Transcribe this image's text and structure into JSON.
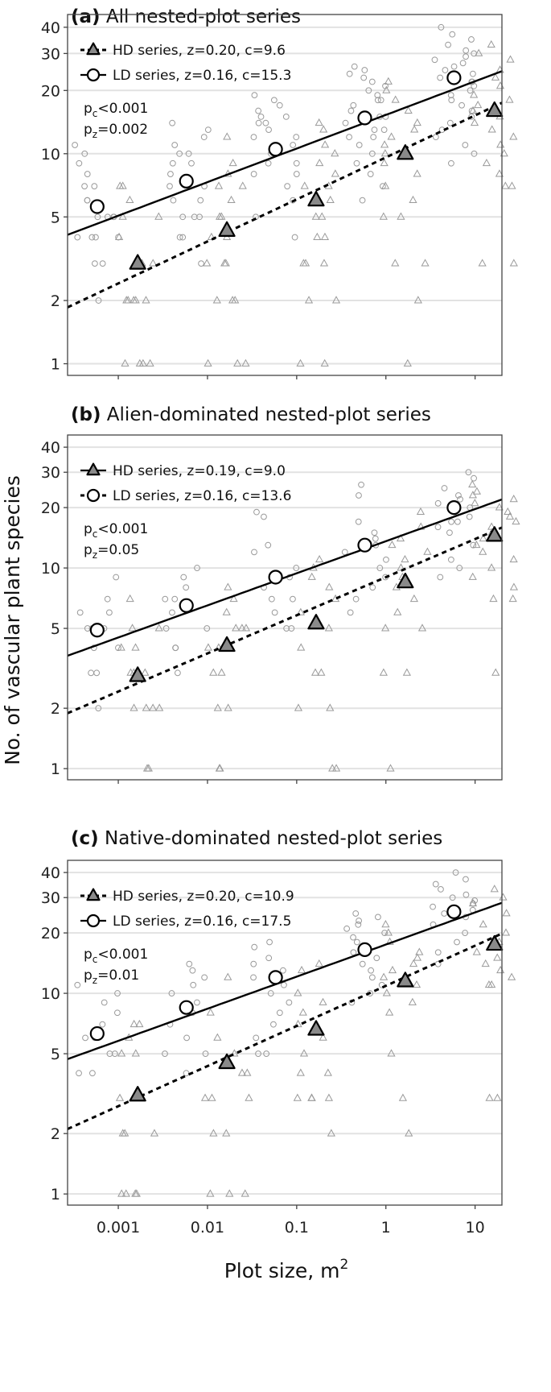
{
  "chart_data": {
    "type": "scatter",
    "scale": "log-log",
    "ylabel": "No. of vascular plant species",
    "xlabel": "Plot size, m",
    "xlabel_sup": "2",
    "x_ticks": [
      0.001,
      0.01,
      0.1,
      1,
      10
    ],
    "x_tick_labels": [
      "0.001",
      "0.01",
      "0.1",
      "1",
      "10"
    ],
    "y_ticks": [
      1,
      2,
      5,
      10,
      20,
      30,
      40
    ],
    "y_tick_labels": [
      "1",
      "2",
      "5",
      "10",
      "20",
      "30",
      "40"
    ],
    "xlim": [
      0.00027,
      20
    ],
    "ylim": [
      0.88,
      46
    ],
    "nominal_plot_sizes": [
      0.001,
      0.01,
      0.1,
      1,
      10
    ],
    "panels": [
      {
        "label": "(a)",
        "title": "All nested-plot series",
        "legend": [
          {
            "series": "HD",
            "text": "HD series, z=0.20, c=9.6",
            "marker": "triangle",
            "line": "dashed"
          },
          {
            "series": "LD",
            "text": "LD  series, z=0.16, c=15.3",
            "marker": "circle",
            "line": "solid"
          }
        ],
        "pc_text": "<0.001",
        "pz_text": "=0.002",
        "fit_LD": {
          "z": 0.16,
          "c": 15.3
        },
        "fit_HD": {
          "z": 0.2,
          "c": 9.6
        },
        "mean_LD": [
          5.6,
          7.4,
          10.5,
          14.8,
          23
        ],
        "mean_HD": [
          3.0,
          4.3,
          6.0,
          10.0,
          16
        ],
        "raw_LD": [
          [
            11,
            10,
            9,
            8,
            7,
            7,
            6,
            6,
            5,
            5,
            5,
            5,
            4,
            4,
            4,
            4,
            3,
            3,
            2
          ],
          [
            14,
            13,
            12,
            11,
            10,
            10,
            9,
            9,
            8,
            7,
            7,
            6,
            6,
            5,
            5,
            5,
            4,
            4,
            3
          ],
          [
            19,
            18,
            17,
            16,
            15,
            15,
            14,
            14,
            13,
            12,
            12,
            11,
            10,
            10,
            9,
            9,
            8,
            8,
            7,
            6,
            5,
            4
          ],
          [
            26,
            25,
            24,
            23,
            22,
            21,
            20,
            19,
            18,
            18,
            17,
            16,
            15,
            15,
            14,
            13,
            13,
            12,
            12,
            11,
            10,
            9,
            8,
            7,
            6
          ],
          [
            40,
            37,
            35,
            33,
            31,
            30,
            29,
            28,
            27,
            26,
            25,
            24,
            23,
            22,
            22,
            21,
            20,
            19,
            18,
            17,
            16,
            15,
            14,
            13,
            12,
            11,
            10,
            9
          ]
        ],
        "raw_HD": [
          [
            7,
            7,
            6,
            5,
            5,
            4,
            3,
            3,
            2,
            2,
            2,
            2,
            2,
            1,
            1,
            1,
            1
          ],
          [
            12,
            9,
            8,
            7,
            7,
            6,
            5,
            5,
            4,
            4,
            3,
            3,
            3,
            2,
            2,
            2,
            1,
            1,
            1
          ],
          [
            14,
            13,
            11,
            10,
            9,
            8,
            7,
            7,
            6,
            5,
            5,
            4,
            4,
            3,
            3,
            3,
            2,
            2,
            1,
            1
          ],
          [
            22,
            20,
            18,
            16,
            14,
            13,
            12,
            11,
            10,
            9,
            8,
            7,
            6,
            5,
            5,
            3,
            3,
            2,
            1
          ],
          [
            33,
            30,
            28,
            25,
            23,
            21,
            19,
            18,
            17,
            16,
            15,
            14,
            13,
            12,
            11,
            10,
            9,
            8,
            7,
            7,
            3,
            3
          ]
        ]
      },
      {
        "label": "(b)",
        "title": "Alien-dominated nested-plot series",
        "legend": [
          {
            "series": "HD",
            "text": "HD series, z=0.19, c=9.0",
            "marker": "triangle",
            "line": "solid"
          },
          {
            "series": "LD",
            "text": "LD  series, z=0.16, c=13.6",
            "marker": "circle",
            "line": "dashed"
          }
        ],
        "pc_text": "<0.001",
        "pz_text": "=0.05",
        "fit_LD": {
          "z": 0.16,
          "c": 13.6
        },
        "fit_HD": {
          "z": 0.19,
          "c": 9.0
        },
        "mean_LD": [
          4.9,
          6.5,
          9.0,
          13.0,
          20
        ],
        "mean_HD": [
          2.9,
          4.1,
          5.3,
          8.5,
          14.5
        ],
        "raw_LD": [
          [
            9,
            7,
            6,
            6,
            5,
            5,
            5,
            4,
            4,
            3,
            3,
            2
          ],
          [
            10,
            9,
            8,
            7,
            7,
            6,
            5,
            5,
            4,
            4,
            3
          ],
          [
            19,
            18,
            13,
            12,
            10,
            9,
            8,
            7,
            7,
            6,
            5,
            5
          ],
          [
            26,
            23,
            17,
            15,
            14,
            13,
            12,
            11,
            10,
            9,
            8,
            7,
            6
          ],
          [
            30,
            28,
            25,
            23,
            22,
            21,
            20,
            19,
            18,
            17,
            17,
            16,
            15,
            13,
            11,
            10,
            9
          ]
        ],
        "raw_HD": [
          [
            7,
            5,
            5,
            4,
            4,
            3,
            3,
            3,
            2,
            2,
            2,
            2,
            1,
            1
          ],
          [
            8,
            7,
            6,
            5,
            5,
            5,
            4,
            4,
            3,
            3,
            2,
            2,
            1,
            1
          ],
          [
            11,
            10,
            9,
            8,
            7,
            6,
            5,
            4,
            3,
            3,
            2,
            2,
            1,
            1
          ],
          [
            19,
            16,
            14,
            13,
            12,
            11,
            10,
            9,
            8,
            7,
            6,
            5,
            5,
            3,
            3,
            1
          ],
          [
            26,
            24,
            23,
            22,
            21,
            20,
            19,
            18,
            17,
            16,
            15,
            14,
            13,
            12,
            11,
            10,
            9,
            8,
            7,
            7,
            3
          ]
        ]
      },
      {
        "label": "(c)",
        "title": "Native-dominated nested-plot series",
        "legend": [
          {
            "series": "HD",
            "text": "HD series, z=0.20, c=10.9",
            "marker": "triangle",
            "line": "dashed"
          },
          {
            "series": "LD",
            "text": "LD  series, z=0.16, c=17.5",
            "marker": "circle",
            "line": "solid"
          }
        ],
        "pc_text": "<0.001",
        "pz_text": "=0.01",
        "fit_LD": {
          "z": 0.16,
          "c": 17.5
        },
        "fit_HD": {
          "z": 0.2,
          "c": 10.9
        },
        "mean_LD": [
          6.3,
          8.5,
          12.0,
          16.5,
          25.5
        ],
        "mean_HD": [
          3.1,
          4.5,
          6.6,
          11.5,
          17.5
        ],
        "raw_LD": [
          [
            11,
            10,
            9,
            8,
            7,
            6,
            6,
            5,
            5,
            4,
            4
          ],
          [
            14,
            13,
            12,
            11,
            10,
            9,
            8,
            7,
            6,
            5,
            5,
            4
          ],
          [
            18,
            17,
            15,
            14,
            13,
            12,
            11,
            10,
            9,
            8,
            7,
            6,
            5,
            5
          ],
          [
            25,
            24,
            23,
            22,
            21,
            20,
            19,
            18,
            17,
            16,
            15,
            14,
            13,
            12,
            11,
            10,
            9
          ],
          [
            40,
            37,
            35,
            33,
            31,
            30,
            29,
            28,
            27,
            26,
            25,
            24,
            22,
            20,
            18,
            16,
            14
          ]
        ],
        "raw_HD": [
          [
            7,
            7,
            6,
            5,
            5,
            3,
            3,
            2,
            2,
            2,
            1,
            1,
            1,
            1
          ],
          [
            12,
            8,
            6,
            5,
            4,
            4,
            3,
            3,
            3,
            2,
            2,
            1,
            1,
            1
          ],
          [
            14,
            13,
            10,
            9,
            8,
            7,
            6,
            5,
            4,
            4,
            3,
            3,
            3,
            3,
            2
          ],
          [
            22,
            20,
            18,
            16,
            15,
            14,
            13,
            12,
            11,
            10,
            9,
            8,
            5,
            3,
            2
          ],
          [
            33,
            30,
            28,
            25,
            22,
            20,
            18,
            16,
            15,
            14,
            13,
            12,
            11,
            11,
            3,
            3
          ]
        ]
      }
    ]
  }
}
